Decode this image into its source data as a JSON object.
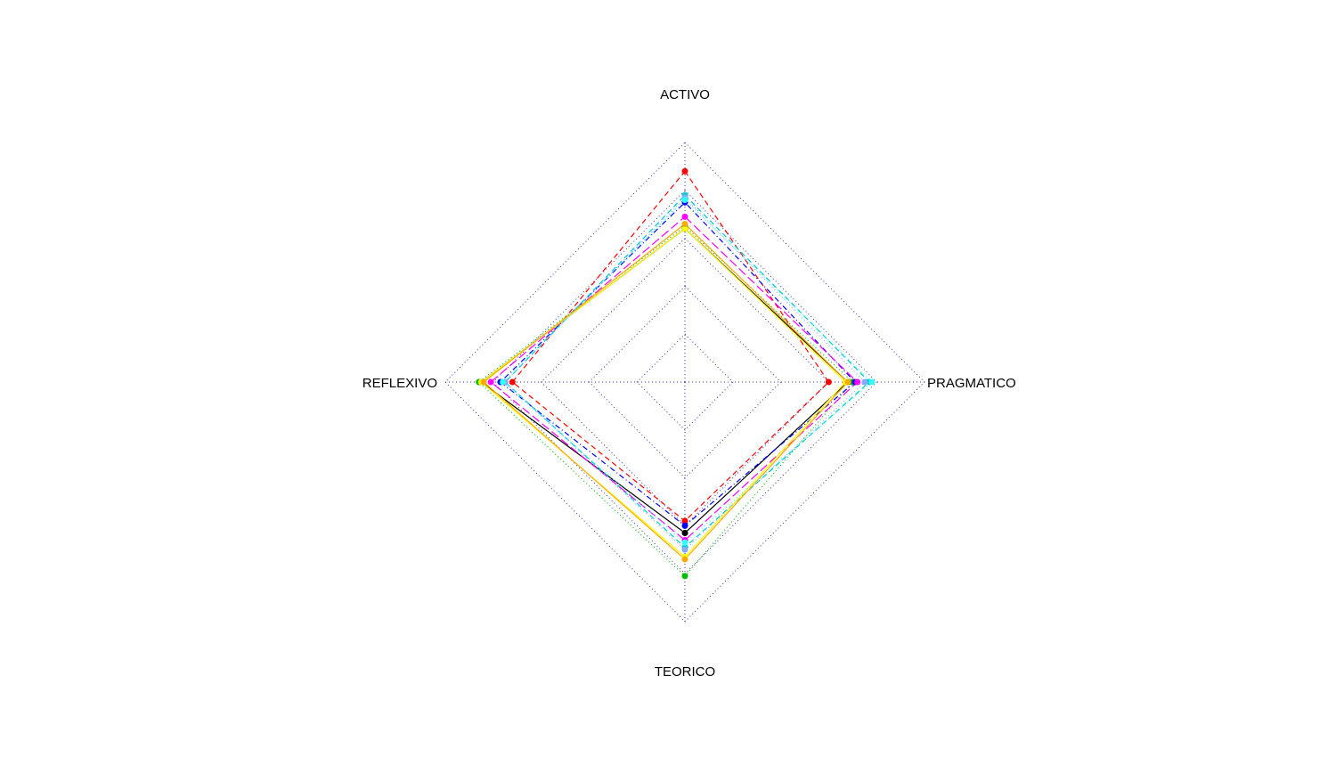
{
  "chart_data": {
    "type": "radar",
    "axes": [
      "ACTIVO",
      "PRAGMATICO",
      "TEORICO",
      "REFLEXIVO"
    ],
    "range": [
      0,
      1
    ],
    "grid_levels": 5,
    "grid": true,
    "grid_style": "dotted",
    "grid_color": "#3333aa",
    "series": [
      {
        "color": "#000000",
        "dash": "solid",
        "values": [
          0.64,
          0.68,
          0.63,
          0.85
        ]
      },
      {
        "color": "#ff0000",
        "dash": "dashed",
        "values": [
          0.88,
          0.6,
          0.58,
          0.72
        ]
      },
      {
        "color": "#00bb00",
        "dash": "dotted",
        "values": [
          0.65,
          0.7,
          0.81,
          0.86
        ]
      },
      {
        "color": "#0000ff",
        "dash": "dotdash",
        "values": [
          0.75,
          0.71,
          0.6,
          0.77
        ]
      },
      {
        "color": "#00cccc",
        "dash": "dashed",
        "values": [
          0.78,
          0.77,
          0.69,
          0.75
        ]
      },
      {
        "color": "#ff00ff",
        "dash": "longdash",
        "values": [
          0.69,
          0.72,
          0.66,
          0.81
        ]
      },
      {
        "color": "#ffff00",
        "dash": "solid",
        "values": [
          0.64,
          0.67,
          0.73,
          0.85
        ]
      },
      {
        "color": "#88aaff",
        "dash": "dotted",
        "values": [
          0.77,
          0.75,
          0.7,
          0.75
        ]
      },
      {
        "color": "#ffaa00",
        "dash": "solid",
        "values": [
          0.66,
          0.68,
          0.74,
          0.84
        ]
      },
      {
        "color": "#33ffff",
        "dash": "dotted",
        "values": [
          0.76,
          0.78,
          0.67,
          0.76
        ]
      }
    ]
  }
}
